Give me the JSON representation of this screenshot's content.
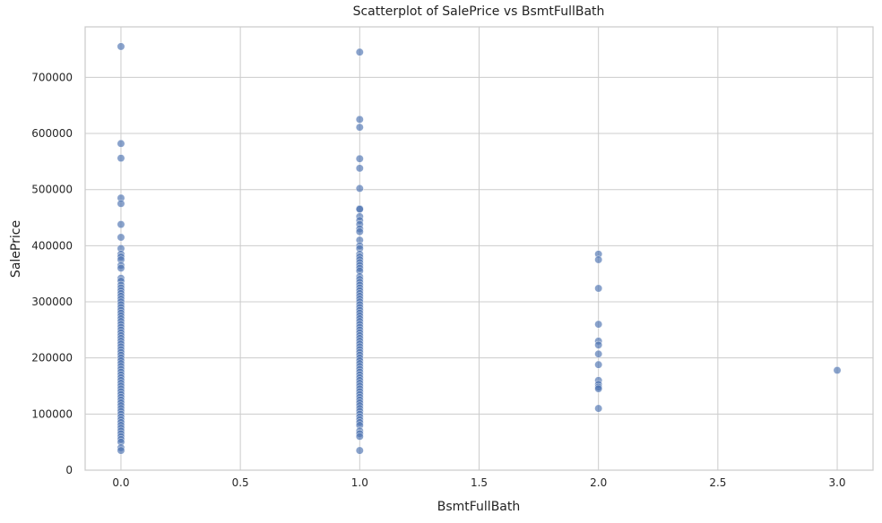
{
  "chart_data": {
    "type": "scatter",
    "title": "Scatterplot of SalePrice vs BsmtFullBath",
    "xlabel": "BsmtFullBath",
    "ylabel": "SalePrice",
    "xlim": [
      -0.15,
      3.15
    ],
    "ylim": [
      0,
      790000
    ],
    "x_ticks": [
      0.0,
      0.5,
      1.0,
      1.5,
      2.0,
      2.5,
      3.0
    ],
    "x_tick_labels": [
      "0.0",
      "0.5",
      "1.0",
      "1.5",
      "2.0",
      "2.5",
      "3.0"
    ],
    "y_ticks": [
      0,
      100000,
      200000,
      300000,
      400000,
      500000,
      600000,
      700000
    ],
    "y_tick_labels": [
      "0",
      "100000",
      "200000",
      "300000",
      "400000",
      "500000",
      "600000",
      "700000"
    ],
    "grid": true,
    "series": [
      {
        "points_by_x": [
          {
            "x": 0.0,
            "y": [
              755000,
              582000,
              556000,
              485000,
              475000,
              438000,
              415000,
              395000,
              385000,
              380000,
              375000,
              365000,
              360000,
              342000,
              337000,
              330000,
              325000,
              320000,
              315000,
              310000,
              305000,
              300000,
              295000,
              290000,
              285000,
              280000,
              275000,
              270000,
              265000,
              260000,
              255000,
              250000,
              245000,
              240000,
              235000,
              230000,
              225000,
              220000,
              215000,
              210000,
              205000,
              200000,
              195000,
              190000,
              185000,
              180000,
              175000,
              170000,
              165000,
              160000,
              155000,
              150000,
              145000,
              140000,
              135000,
              130000,
              125000,
              120000,
              115000,
              110000,
              105000,
              100000,
              95000,
              90000,
              85000,
              80000,
              75000,
              70000,
              65000,
              60000,
              55000,
              50000,
              40000,
              35000
            ]
          },
          {
            "x": 1.0,
            "y": [
              745000,
              625000,
              611000,
              555000,
              538000,
              502000,
              466000,
              465000,
              452000,
              445000,
              438000,
              430000,
              425000,
              410000,
              400000,
              395000,
              385000,
              380000,
              375000,
              370000,
              365000,
              360000,
              355000,
              345000,
              340000,
              335000,
              330000,
              325000,
              320000,
              315000,
              310000,
              305000,
              300000,
              295000,
              290000,
              285000,
              280000,
              275000,
              270000,
              265000,
              260000,
              255000,
              250000,
              245000,
              240000,
              235000,
              230000,
              225000,
              220000,
              215000,
              210000,
              205000,
              200000,
              195000,
              190000,
              185000,
              180000,
              175000,
              170000,
              165000,
              160000,
              155000,
              150000,
              145000,
              140000,
              135000,
              130000,
              125000,
              120000,
              115000,
              110000,
              105000,
              100000,
              95000,
              90000,
              85000,
              80000,
              70000,
              65000,
              60000,
              35000
            ]
          },
          {
            "x": 2.0,
            "y": [
              385000,
              375000,
              324000,
              260000,
              230000,
              223000,
              207000,
              188000,
              160000,
              153000,
              148000,
              145000,
              110000
            ]
          },
          {
            "x": 3.0,
            "y": [
              178000
            ]
          }
        ]
      }
    ]
  }
}
